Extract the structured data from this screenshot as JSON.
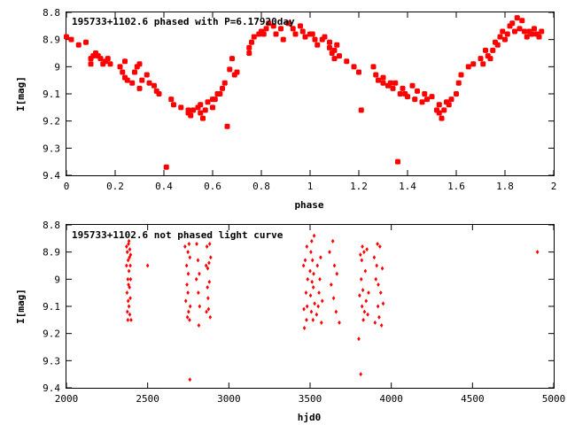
{
  "chart_data": [
    {
      "type": "scatter",
      "title": "195733+1102.6 phased with P=6.17920day",
      "xlabel": "phase",
      "ylabel": "I[mag]",
      "xlim": [
        0,
        2
      ],
      "ylim": [
        9.4,
        8.8
      ],
      "y_inverted": true,
      "xticks": [
        "0",
        "0.2",
        "0.4",
        "0.6",
        "0.8",
        "1",
        "1.2",
        "1.4",
        "1.6",
        "1.8",
        "2"
      ],
      "yticks": [
        "8.8",
        "8.9",
        "9",
        "9.1",
        "9.2",
        "9.3",
        "9.4"
      ],
      "marker_color": "#ff0000",
      "marker": "filled-square",
      "x": [
        0.0,
        0.02,
        0.05,
        0.08,
        0.1,
        0.1,
        0.11,
        0.12,
        0.13,
        0.14,
        0.15,
        0.16,
        0.17,
        0.18,
        0.22,
        0.23,
        0.24,
        0.24,
        0.25,
        0.27,
        0.28,
        0.29,
        0.3,
        0.3,
        0.31,
        0.33,
        0.34,
        0.36,
        0.37,
        0.38,
        0.41,
        0.43,
        0.44,
        0.47,
        0.5,
        0.5,
        0.51,
        0.52,
        0.54,
        0.55,
        0.55,
        0.56,
        0.57,
        0.58,
        0.6,
        0.6,
        0.61,
        0.62,
        0.63,
        0.64,
        0.65,
        0.66,
        0.67,
        0.68,
        0.69,
        0.7,
        0.75,
        0.75,
        0.76,
        0.77,
        0.79,
        0.8,
        0.81,
        0.82,
        0.83,
        0.85,
        0.86,
        0.88,
        0.89,
        0.91,
        0.93,
        0.94,
        0.96,
        0.97,
        0.98,
        1.0,
        1.01,
        1.02,
        1.03,
        1.05,
        1.06,
        1.08,
        1.08,
        1.09,
        1.1,
        1.1,
        1.11,
        1.12,
        1.15,
        1.18,
        1.2,
        1.21,
        1.26,
        1.27,
        1.28,
        1.3,
        1.3,
        1.32,
        1.33,
        1.34,
        1.35,
        1.36,
        1.37,
        1.38,
        1.39,
        1.4,
        1.42,
        1.43,
        1.44,
        1.46,
        1.47,
        1.48,
        1.5,
        1.52,
        1.53,
        1.53,
        1.54,
        1.55,
        1.56,
        1.57,
        1.58,
        1.6,
        1.61,
        1.62,
        1.65,
        1.67,
        1.7,
        1.71,
        1.72,
        1.73,
        1.74,
        1.75,
        1.76,
        1.77,
        1.78,
        1.79,
        1.8,
        1.81,
        1.82,
        1.83,
        1.84,
        1.85,
        1.86,
        1.87,
        1.88,
        1.89,
        1.9,
        1.91,
        1.92,
        1.93,
        1.94,
        1.95
      ],
      "y": [
        8.89,
        8.9,
        8.92,
        8.91,
        8.97,
        8.99,
        8.96,
        8.95,
        8.96,
        8.97,
        8.99,
        8.98,
        8.97,
        8.99,
        9.0,
        9.02,
        9.04,
        8.98,
        9.05,
        9.06,
        9.02,
        9.0,
        8.99,
        9.08,
        9.05,
        9.03,
        9.06,
        9.07,
        9.09,
        9.1,
        9.37,
        9.12,
        9.14,
        9.15,
        9.16,
        9.17,
        9.18,
        9.16,
        9.15,
        9.17,
        9.14,
        9.19,
        9.16,
        9.13,
        9.12,
        9.15,
        9.12,
        9.1,
        9.1,
        9.08,
        9.06,
        9.22,
        9.01,
        8.97,
        9.03,
        9.02,
        8.93,
        8.95,
        8.91,
        8.89,
        8.88,
        8.87,
        8.88,
        8.86,
        8.84,
        8.85,
        8.88,
        8.86,
        8.9,
        8.84,
        8.86,
        8.88,
        8.85,
        8.87,
        8.89,
        8.88,
        8.88,
        8.9,
        8.92,
        8.9,
        8.89,
        8.91,
        8.93,
        8.95,
        8.94,
        8.97,
        8.92,
        8.96,
        8.98,
        9.0,
        9.02,
        9.16,
        9.0,
        9.03,
        9.05,
        9.06,
        9.04,
        9.07,
        9.06,
        9.08,
        9.06,
        9.35,
        9.1,
        9.08,
        9.1,
        9.11,
        9.07,
        9.12,
        9.09,
        9.13,
        9.1,
        9.12,
        9.11,
        9.16,
        9.14,
        9.17,
        9.19,
        9.16,
        9.13,
        9.14,
        9.12,
        9.1,
        9.06,
        9.03,
        9.0,
        8.99,
        8.97,
        8.99,
        8.94,
        8.96,
        8.97,
        8.94,
        8.91,
        8.92,
        8.89,
        8.87,
        8.9,
        8.88,
        8.85,
        8.84,
        8.87,
        8.82,
        8.86,
        8.83,
        8.87,
        8.89,
        8.87,
        8.88,
        8.86,
        8.88,
        8.89,
        8.87
      ]
    },
    {
      "type": "scatter",
      "title": "195733+1102.6 not phased light curve",
      "xlabel": "hjd0",
      "ylabel": "I[mag]",
      "xlim": [
        2000,
        5000
      ],
      "ylim": [
        9.4,
        8.8
      ],
      "y_inverted": true,
      "xticks": [
        "2000",
        "2500",
        "3000",
        "3500",
        "4000",
        "4500",
        "5000"
      ],
      "yticks": [
        "8.8",
        "8.9",
        "9",
        "9.1",
        "9.2",
        "9.3",
        "9.4"
      ],
      "marker_color": "#ff0000",
      "marker": "small-diamond",
      "x": [
        2370,
        2370,
        2373,
        2375,
        2375,
        2378,
        2378,
        2380,
        2380,
        2382,
        2382,
        2385,
        2385,
        2385,
        2388,
        2388,
        2390,
        2390,
        2393,
        2393,
        2395,
        2395,
        2398,
        2500,
        2730,
        2735,
        2740,
        2742,
        2745,
        2748,
        2748,
        2750,
        2752,
        2755,
        2758,
        2760,
        2760,
        2762,
        2800,
        2802,
        2810,
        2812,
        2815,
        2818,
        2820,
        2860,
        2862,
        2865,
        2868,
        2870,
        2872,
        2875,
        2878,
        2880,
        2882,
        2885,
        2888,
        3460,
        3462,
        3465,
        3470,
        3475,
        3478,
        3480,
        3482,
        3485,
        3500,
        3503,
        3505,
        3508,
        3510,
        3512,
        3515,
        3518,
        3520,
        3522,
        3525,
        3528,
        3540,
        3545,
        3550,
        3555,
        3560,
        3565,
        3570,
        3575,
        3620,
        3630,
        3640,
        3645,
        3650,
        3660,
        3665,
        3680,
        3800,
        3805,
        3810,
        3812,
        3815,
        3818,
        3820,
        3822,
        3825,
        3828,
        3832,
        3835,
        3840,
        3845,
        3850,
        3855,
        3860,
        3895,
        3900,
        3905,
        3910,
        3915,
        3918,
        3920,
        3925,
        3930,
        3935,
        3940,
        3945,
        3950,
        4900
      ],
      "y": [
        8.88,
        8.95,
        9.05,
        9.12,
        8.9,
        9.0,
        9.15,
        8.93,
        9.08,
        8.87,
        9.02,
        8.97,
        9.1,
        8.86,
        8.92,
        9.03,
        8.89,
        9.13,
        8.95,
        9.07,
        8.91,
        9.0,
        9.15,
        8.95,
        8.88,
        9.08,
        8.95,
        9.02,
        9.14,
        8.9,
        9.05,
        8.98,
        9.12,
        8.87,
        9.15,
        8.92,
        9.37,
        9.1,
        9.0,
        8.87,
        8.93,
        9.05,
        9.17,
        8.98,
        9.1,
        8.95,
        9.12,
        8.88,
        9.03,
        8.96,
        9.07,
        9.11,
        8.94,
        9.01,
        8.87,
        9.14,
        8.92,
        8.95,
        9.11,
        9.18,
        8.93,
        9.05,
        9.15,
        8.88,
        9.1,
        9.0,
        8.97,
        9.06,
        8.9,
        9.12,
        8.86,
        9.01,
        8.93,
        9.15,
        9.03,
        8.98,
        8.84,
        9.09,
        9.13,
        8.95,
        9.1,
        9.05,
        9.0,
        8.92,
        9.16,
        9.08,
        8.9,
        9.02,
        8.86,
        9.07,
        8.95,
        9.12,
        8.98,
        9.16,
        9.22,
        9.06,
        8.91,
        9.35,
        9.0,
        8.93,
        9.1,
        8.88,
        9.04,
        9.15,
        8.9,
        9.12,
        8.97,
        9.08,
        8.89,
        9.13,
        9.05,
        8.92,
        9.16,
        9.0,
        8.95,
        8.87,
        9.1,
        9.02,
        9.14,
        8.88,
        9.05,
        9.17,
        8.96,
        9.09,
        8.9
      ]
    }
  ]
}
